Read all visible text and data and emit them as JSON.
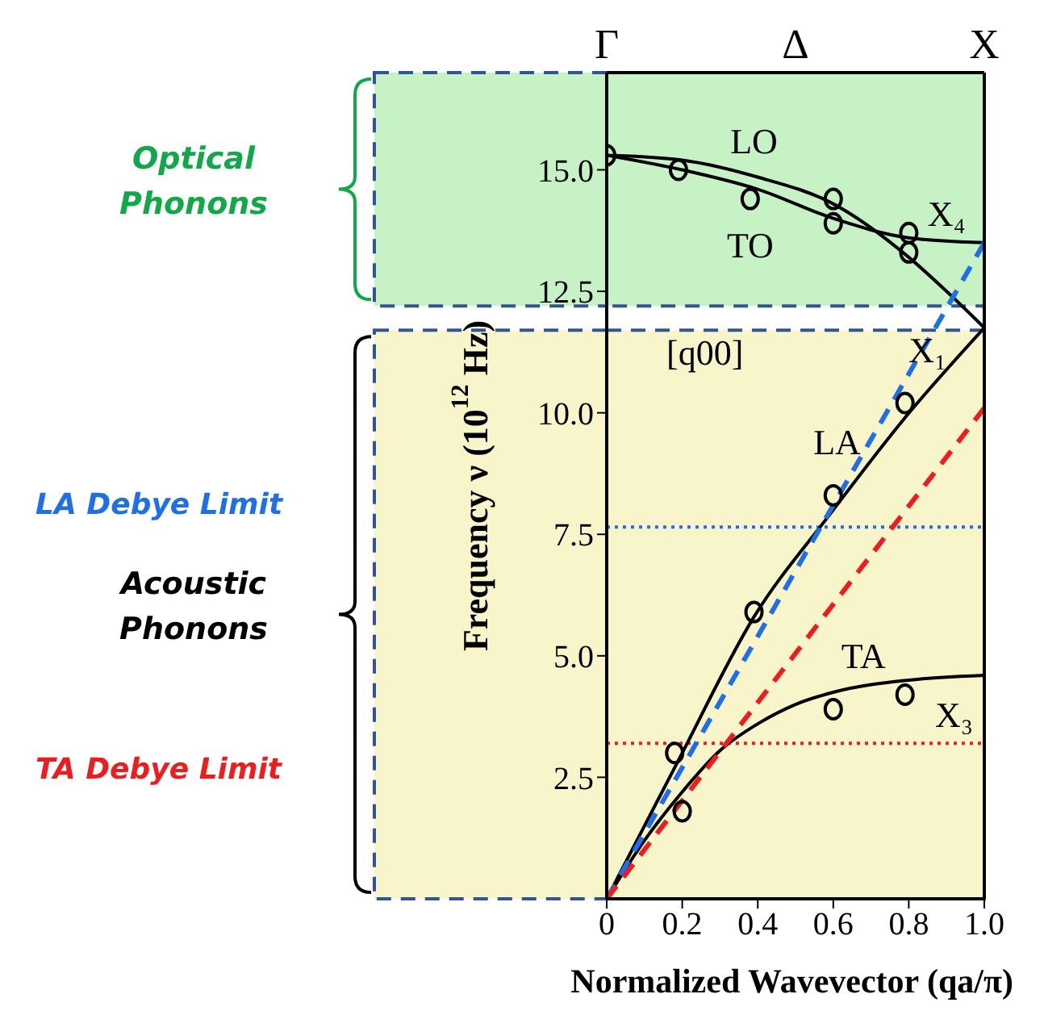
{
  "chart_data": {
    "type": "line",
    "xlabel": "Normalized Wavevector (qa/π)",
    "ylabel": "Frequency ν (10$^{12}$ Hz)",
    "xlim": [
      0,
      1
    ],
    "xticks": [
      0,
      0.2,
      0.4,
      0.6,
      0.8,
      {
        "value": 1,
        "label": "1.0"
      }
    ],
    "ylim": [
      0,
      17
    ],
    "yticks": [
      2.5,
      {
        "value": 5,
        "label": "5.0"
      },
      7.5,
      {
        "value": 10,
        "label": "10.0"
      },
      12.5,
      {
        "value": 15,
        "label": "15.0"
      }
    ],
    "marker": "none",
    "series": [
      {
        "name": "LO",
        "color": "#000000",
        "x": [
          0,
          0.2,
          0.4,
          0.6,
          0.8,
          0.9,
          1
        ],
        "values": [
          15.3,
          15.2,
          14.85,
          14.3,
          13.2,
          12.5,
          11.75
        ]
      },
      {
        "name": "TO",
        "color": "#000000",
        "x": [
          0,
          0.2,
          0.4,
          0.6,
          0.8,
          1
        ],
        "values": [
          15.3,
          15.0,
          14.6,
          14.0,
          13.6,
          13.5
        ]
      },
      {
        "name": "LA",
        "color": "#000000",
        "x": [
          0,
          0.1,
          0.19,
          0.39,
          0.59,
          0.79,
          1
        ],
        "values": [
          0,
          1.5,
          2.85,
          5.8,
          7.9,
          9.9,
          11.75
        ]
      },
      {
        "name": "TA",
        "color": "#000000",
        "x": [
          0,
          0.1,
          0.2,
          0.3,
          0.4,
          0.5,
          0.6,
          0.8,
          1
        ],
        "values": [
          0,
          1.2,
          2.2,
          3.05,
          3.6,
          4.0,
          4.25,
          4.5,
          4.6
        ]
      },
      {
        "color": "#1f6fe8",
        "line_style": "dashed",
        "x": [
          0,
          1
        ],
        "values": [
          0,
          13.5
        ]
      },
      {
        "color": "#ee1c1c",
        "line_style": "dashed",
        "x": [
          0,
          1
        ],
        "values": [
          0,
          10.1
        ]
      },
      {
        "type": "scatter",
        "color": "#000000",
        "marker": "circle",
        "x": [
          0,
          0.19,
          0.38,
          0.6,
          0.6,
          0.8,
          0.8,
          0.18,
          0.2,
          0.39,
          0.6,
          0.79,
          0.6,
          0.79
        ],
        "values": [
          15.3,
          15.0,
          14.4,
          14.4,
          13.9,
          13.7,
          13.3,
          3.0,
          1.8,
          5.9,
          8.3,
          10.2,
          3.9,
          4.2
        ]
      }
    ],
    "bands": [
      {
        "axis": "y",
        "from": 12.2,
        "to": 17,
        "color": "#c6f2c6"
      },
      {
        "axis": "y",
        "from": 0,
        "to": 11.7,
        "color": "#f7f5c9"
      }
    ],
    "ref_lines": [
      {
        "axis": "y",
        "value": 7.65,
        "label": "LA Debye Limit",
        "color": "#1f6fe8",
        "line_style": "dotted"
      },
      {
        "axis": "y",
        "value": 3.2,
        "label": "TA Debye Limit",
        "color": "#ee1c1c",
        "line_style": "dotted"
      }
    ],
    "annotations": [
      "Γ",
      "Δ",
      "X",
      "X₄",
      "X₁",
      "[q00]",
      "X₃",
      "Optical Phonons",
      "Acoustic Phonons"
    ]
  }
}
